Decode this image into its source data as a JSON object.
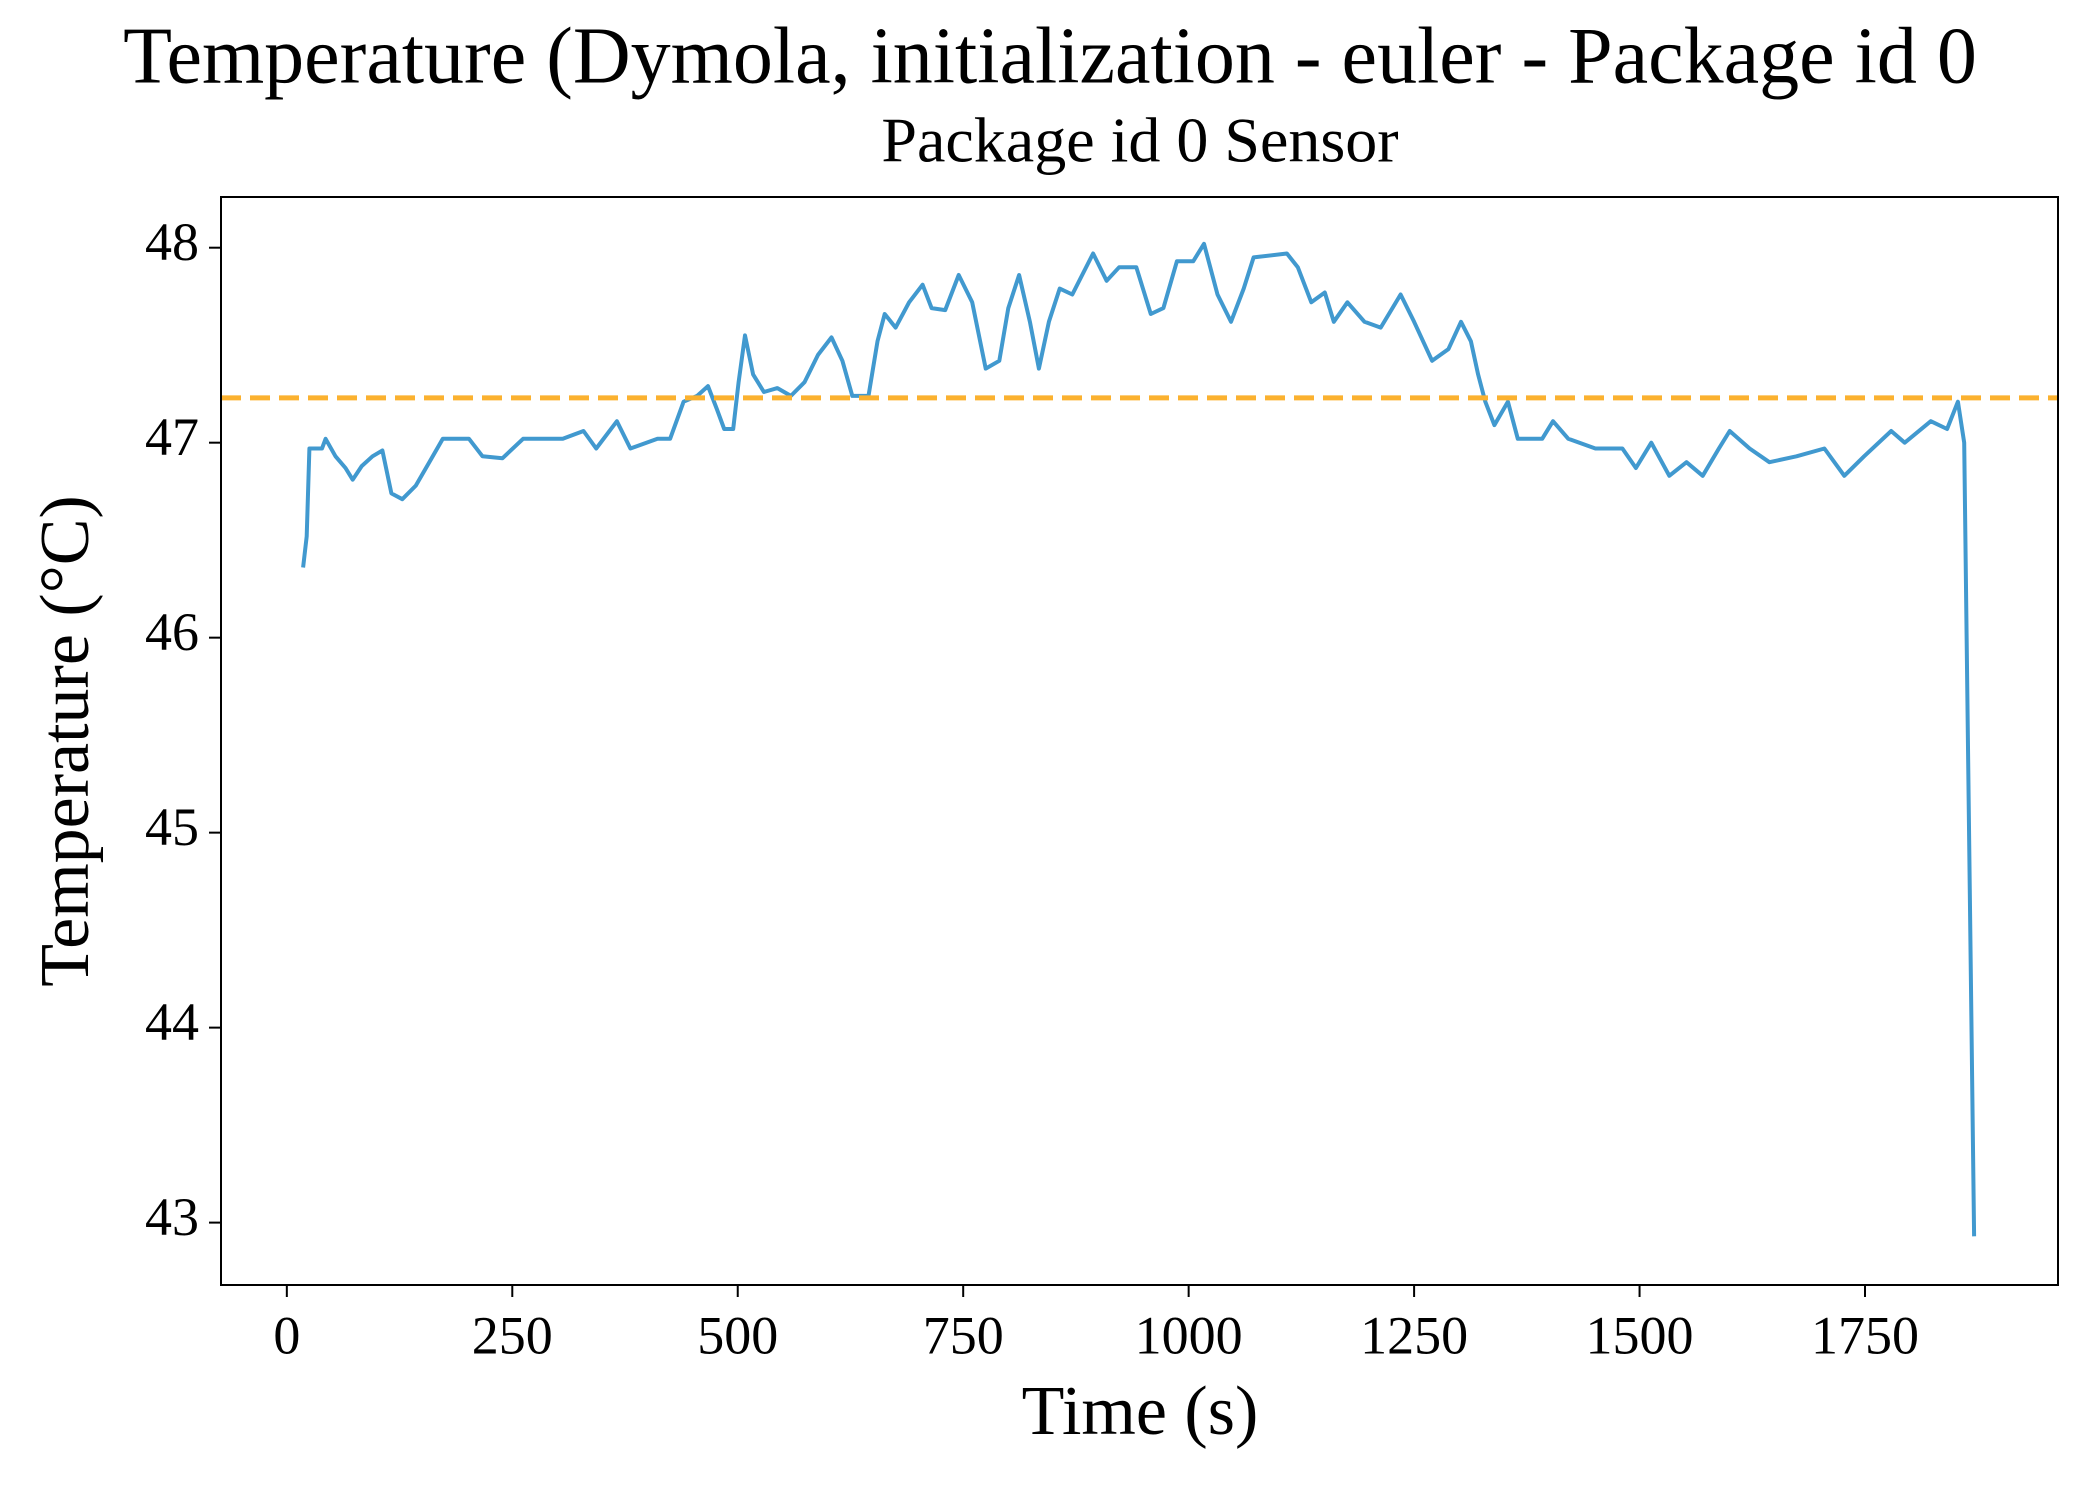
{
  "chart_data": {
    "type": "line",
    "title": "Temperature (Dymola, initialization - euler - Package id 0",
    "subtitle": "Package id 0 Sensor",
    "x_label": "Time (s)",
    "y_label": "Temperature (°C)",
    "xlim": [
      -73,
      1964
    ],
    "ylim": [
      42.68,
      48.26
    ],
    "xticks": [
      0,
      250,
      500,
      750,
      1000,
      1250,
      1500,
      1750
    ],
    "yticks": [
      43,
      44,
      45,
      46,
      47,
      48
    ],
    "reference_line": {
      "value": 47.23,
      "color": "#fbb12f",
      "dashed": true
    },
    "series": [
      {
        "color": "#4199cf",
        "x": [
          18,
          22,
          25,
          39,
          43,
          54,
          65,
          73,
          83,
          95,
          106,
          116,
          128,
          143,
          158,
          173,
          202,
          217,
          239,
          262,
          306,
          329,
          343,
          366,
          381,
          411,
          425,
          440,
          455,
          467,
          477,
          485,
          495,
          501,
          508,
          517,
          529,
          544,
          559,
          574,
          589,
          604,
          616,
          627,
          645,
          655,
          663,
          675,
          690,
          705,
          715,
          730,
          745,
          760,
          775,
          790,
          800,
          812,
          824,
          834,
          845,
          857,
          871,
          894,
          909,
          923,
          942,
          958,
          972,
          987,
          1005,
          1017,
          1032,
          1047,
          1061,
          1072,
          1109,
          1121,
          1136,
          1151,
          1161,
          1176,
          1195,
          1213,
          1235,
          1250,
          1270,
          1288,
          1302,
          1313,
          1321,
          1329,
          1339,
          1354,
          1365,
          1392,
          1404,
          1421,
          1451,
          1481,
          1496,
          1513,
          1533,
          1552,
          1570,
          1588,
          1600,
          1622,
          1644,
          1674,
          1705,
          1727,
          1749,
          1779,
          1794,
          1823,
          1841,
          1853,
          1860,
          1871
        ],
        "values": [
          46.36,
          46.52,
          46.97,
          46.97,
          47.02,
          46.93,
          46.87,
          46.81,
          46.88,
          46.93,
          46.96,
          46.74,
          46.71,
          46.78,
          46.9,
          47.02,
          47.02,
          46.93,
          46.92,
          47.02,
          47.02,
          47.06,
          46.97,
          47.11,
          46.97,
          47.02,
          47.02,
          47.21,
          47.24,
          47.29,
          47.17,
          47.07,
          47.07,
          47.31,
          47.55,
          47.35,
          47.26,
          47.28,
          47.24,
          47.31,
          47.45,
          47.54,
          47.42,
          47.24,
          47.24,
          47.52,
          47.66,
          47.59,
          47.72,
          47.81,
          47.69,
          47.68,
          47.86,
          47.72,
          47.38,
          47.42,
          47.69,
          47.86,
          47.62,
          47.38,
          47.62,
          47.79,
          47.76,
          47.97,
          47.83,
          47.9,
          47.9,
          47.66,
          47.69,
          47.93,
          47.93,
          48.02,
          47.76,
          47.62,
          47.79,
          47.95,
          47.97,
          47.9,
          47.72,
          47.77,
          47.62,
          47.72,
          47.62,
          47.59,
          47.76,
          47.62,
          47.42,
          47.48,
          47.62,
          47.52,
          47.35,
          47.21,
          47.09,
          47.21,
          47.02,
          47.02,
          47.11,
          47.02,
          46.97,
          46.97,
          46.87,
          47.0,
          46.83,
          46.9,
          46.83,
          46.97,
          47.06,
          46.97,
          46.9,
          46.93,
          46.97,
          46.83,
          46.93,
          47.06,
          47.0,
          47.11,
          47.07,
          47.21,
          47.0,
          42.93
        ]
      }
    ]
  }
}
